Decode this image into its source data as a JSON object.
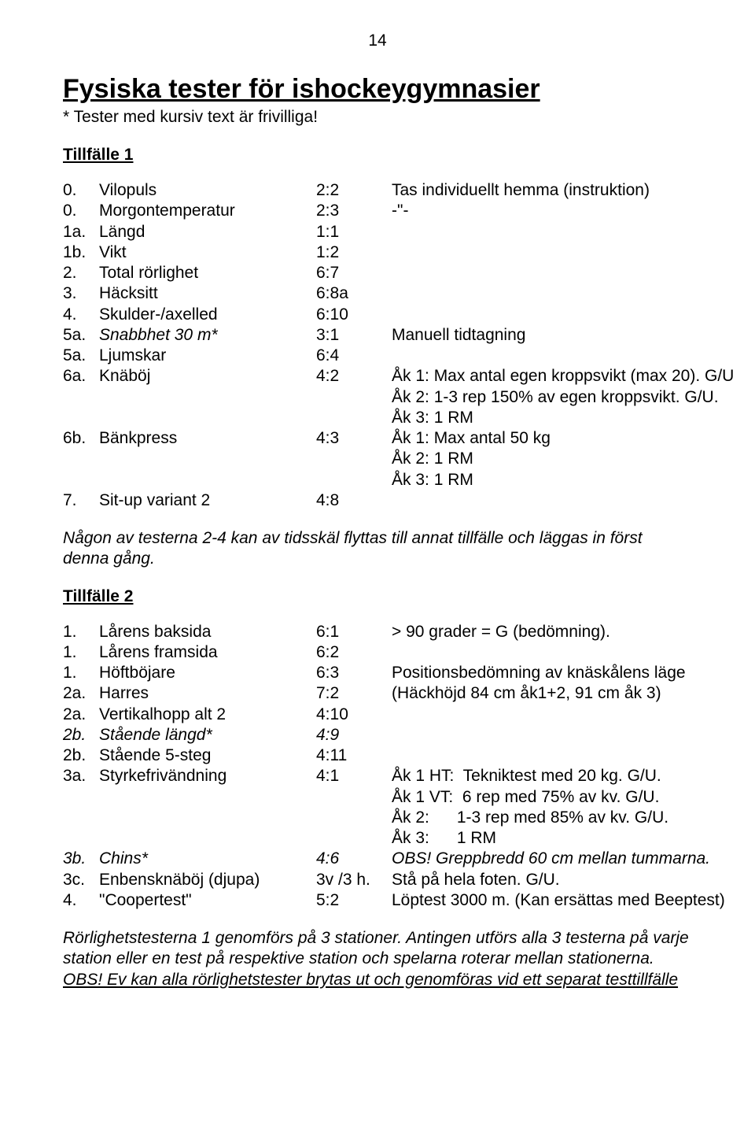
{
  "pageNumber": "14",
  "title": "Fysiska tester för ishockeygymnasier",
  "subtitle": "* Tester med kursiv text är frivilliga!",
  "section1": {
    "heading": "Tillfälle 1",
    "rows": [
      {
        "num": "0.",
        "name": "Vilopuls",
        "ref": "2:2",
        "desc": "Tas individuellt hemma (instruktion)"
      },
      {
        "num": "0.",
        "name": "Morgontemperatur",
        "ref": "2:3",
        "desc": "-\"-"
      },
      {
        "num": "1a.",
        "name": "Längd",
        "ref": "1:1",
        "desc": ""
      },
      {
        "num": "1b.",
        "name": "Vikt",
        "ref": "1:2",
        "desc": ""
      },
      {
        "num": "2.",
        "name": "Total rörlighet",
        "ref": "6:7",
        "desc": ""
      },
      {
        "num": "3.",
        "name": "Häcksitt",
        "ref": "6:8a",
        "desc": ""
      },
      {
        "num": "4.",
        "name": "Skulder-/axelled",
        "ref": "6:10",
        "desc": ""
      },
      {
        "num": "5a.",
        "name": "Snabbhet 30 m*",
        "ref": "3:1",
        "desc": "Manuell tidtagning",
        "italicName": true
      },
      {
        "num": "5a.",
        "name": "Ljumskar",
        "ref": "6:4",
        "desc": ""
      },
      {
        "num": "6a.",
        "name": "Knäböj",
        "ref": "4:2",
        "desc": "Åk 1: Max antal egen kroppsvikt (max 20). G/U"
      },
      {
        "num": "",
        "name": "",
        "ref": "",
        "desc": "Åk 2: 1-3 rep 150% av egen kroppsvikt. G/U."
      },
      {
        "num": "",
        "name": "",
        "ref": "",
        "desc": "Åk 3: 1 RM"
      },
      {
        "num": "6b.",
        "name": "Bänkpress",
        "ref": "4:3",
        "desc": "Åk 1: Max antal 50 kg"
      },
      {
        "num": "",
        "name": "",
        "ref": "",
        "desc": "Åk 2: 1 RM"
      },
      {
        "num": "",
        "name": "",
        "ref": "",
        "desc": "Åk 3: 1 RM"
      },
      {
        "num": "7.",
        "name": "Sit-up variant 2",
        "ref": "4:8",
        "desc": ""
      }
    ],
    "note": "Någon av testerna 2-4 kan av tidsskäl flyttas till annat tillfälle och läggas in först denna gång."
  },
  "section2": {
    "heading": "Tillfälle 2",
    "rows": [
      {
        "num": "1.",
        "name": "Lårens baksida",
        "ref": "6:1",
        "desc": "> 90 grader = G (bedömning)."
      },
      {
        "num": "1.",
        "name": "Lårens framsida",
        "ref": "6:2",
        "desc": ""
      },
      {
        "num": "1.",
        "name": "Höftböjare",
        "ref": "6:3",
        "desc": "Positionsbedömning av knäskålens läge"
      },
      {
        "num": "2a.",
        "name": "Harres",
        "ref": "7:2",
        "desc": "(Häckhöjd 84 cm åk1+2, 91 cm åk 3)"
      },
      {
        "num": "2a.",
        "name": "Vertikalhopp alt 2",
        "ref": "4:10",
        "desc": ""
      },
      {
        "num": "2b.",
        "name": "Stående längd*",
        "ref": "4:9",
        "desc": "",
        "italicRow": true
      },
      {
        "num": "2b.",
        "name": "Stående 5-steg",
        "ref": "4:11",
        "desc": ""
      },
      {
        "num": "3a.",
        "name": "Styrkefrivändning",
        "ref": "4:1",
        "desc": "Åk 1 HT:  Tekniktest med 20 kg. G/U."
      },
      {
        "num": "",
        "name": "",
        "ref": "",
        "desc": "Åk 1 VT:  6 rep med 75% av kv. G/U."
      },
      {
        "num": "",
        "name": "",
        "ref": "",
        "desc": "Åk 2:      1-3 rep med 85% av kv. G/U."
      },
      {
        "num": "",
        "name": "",
        "ref": "",
        "desc": "Åk 3:      1 RM"
      },
      {
        "num": "3b.",
        "name": "Chins*",
        "ref": "4:6",
        "desc": "OBS! Greppbredd 60 cm mellan tummarna.",
        "italicRow": true
      },
      {
        "num": "3c.",
        "name": "Enbensknäböj (djupa)",
        "ref": "3v /3 h.",
        "desc": "Stå på hela foten. G/U."
      },
      {
        "num": "4.",
        "name": "\"Coopertest\"",
        "ref": "5:2",
        "desc": "Löptest 3000 m. (Kan ersättas med Beeptest)"
      }
    ]
  },
  "footerNote": "Rörlighetstesterna 1 genomförs på 3 stationer. Antingen utförs alla 3 testerna på varje station eller en test på respektive station och spelarna roterar mellan stationerna.",
  "footerObs": "OBS! Ev kan alla rörlighetstester brytas ut och genomföras vid ett separat testtillfälle"
}
